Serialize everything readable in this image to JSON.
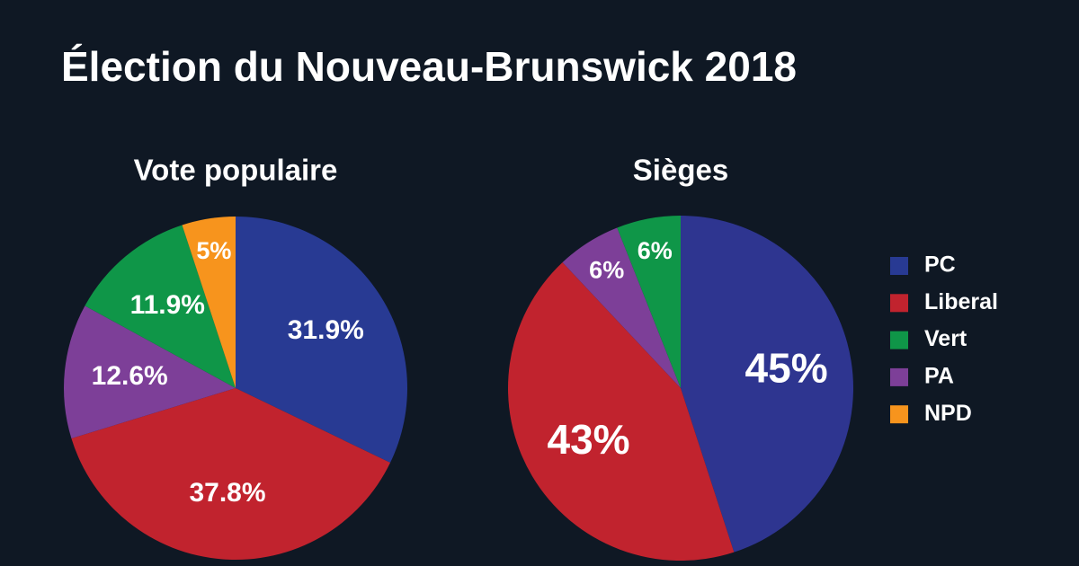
{
  "title": "Élection du Nouveau-Brunswick 2018",
  "chart_data": [
    {
      "type": "pie",
      "title": "Vote populaire",
      "values": [
        31.9,
        37.8,
        12.6,
        11.9,
        5
      ],
      "value_labels": [
        "31.9%",
        "37.8%",
        "12.6%",
        "11.9%",
        "5%"
      ],
      "colors": [
        "#283a93",
        "#c1232e",
        "#7d3f98",
        "#0f9648",
        "#f7941d"
      ]
    },
    {
      "type": "pie",
      "title": "Sièges",
      "values": [
        45,
        43,
        6,
        6
      ],
      "value_labels": [
        "45%",
        "43%",
        "6%",
        "6%"
      ],
      "colors": [
        "#2e3590",
        "#c1232e",
        "#7d3f98",
        "#0f9648"
      ]
    }
  ],
  "legend": [
    {
      "name": "PC",
      "color": "#283a93"
    },
    {
      "name": "Liberal",
      "color": "#c1232e"
    },
    {
      "name": "Vert",
      "color": "#0f9648"
    },
    {
      "name": "PA",
      "color": "#7d3f98"
    },
    {
      "name": "NPD",
      "color": "#f7941d"
    }
  ]
}
